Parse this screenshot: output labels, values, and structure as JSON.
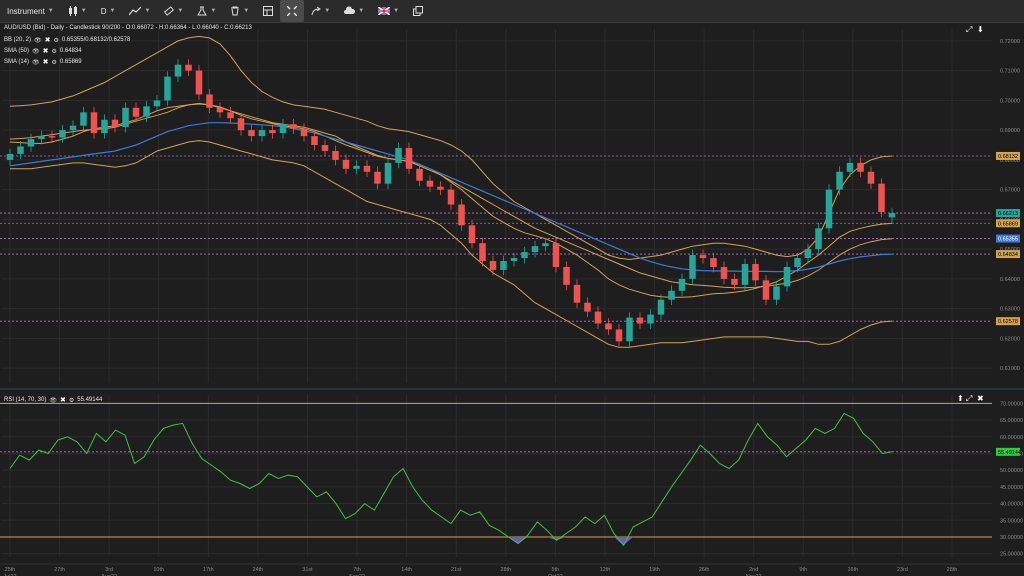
{
  "toolbar": {
    "instrument_label": "Instrument",
    "period_label": "D",
    "items": [
      {
        "name": "chart-type-button",
        "icon": "candles-icon"
      },
      {
        "name": "drawing-tools-button",
        "icon": "pen-line-icon"
      },
      {
        "name": "indicators-button",
        "icon": "ruler-icon"
      },
      {
        "name": "studies-button",
        "icon": "flask-icon"
      },
      {
        "name": "delete-button",
        "icon": "trash-icon"
      },
      {
        "name": "layout-button",
        "icon": "layout-icon"
      },
      {
        "name": "crosshair-button",
        "icon": "crosshair-icon"
      },
      {
        "name": "trade-button",
        "icon": "arrow-icon"
      },
      {
        "name": "theme-button",
        "icon": "cloud-icon"
      },
      {
        "name": "language-button",
        "icon": "flag-uk-icon"
      },
      {
        "name": "popout-button",
        "icon": "popout-icon"
      }
    ]
  },
  "legend": {
    "title": "AUD/USD (Bid) - Daily - Candlestick  90/200 - O:0.66072 - H:0.66364 - L:0.66040 - C:0.66213",
    "bb_label": "BB (20, 2)",
    "bb_values": "0.65355/0.68132/0.62578",
    "sma50_label": "SMA (50)",
    "sma50_value": "0.64834",
    "sma14_label": "SMA (14)",
    "sma14_value": "0.65869",
    "rsi_label": "RSI (14, 70, 30)",
    "rsi_value": "55.49144"
  },
  "colors": {
    "up": "#26a69a",
    "down": "#ef5350",
    "bb": "#d4a352",
    "sma50": "#3a7bd5",
    "sma14": "#d4a352",
    "rsi": "#3ec43e",
    "grid": "#2c2c2c",
    "dash": "#b96ec9",
    "flag": "#6b5ab8"
  },
  "chart_data": [
    {
      "type": "candlestick",
      "title": "AUD/USD (Bid) - Daily - Candlestick",
      "y_ticks": [
        "0.72000",
        "0.71000",
        "0.70000",
        "0.69000",
        "0.68000",
        "0.67000",
        "0.66000",
        "0.65000",
        "0.64000",
        "0.63000",
        "0.62000",
        "0.61000"
      ],
      "ylim": [
        0.605,
        0.724
      ],
      "price_tags": [
        {
          "value": 0.68132,
          "label": "0.68132",
          "bg": "#d4a352",
          "fg": "#000"
        },
        {
          "value": 0.66213,
          "label": "0.66213",
          "bg": "#26a69a",
          "fg": "#000"
        },
        {
          "value": 0.65869,
          "label": "0.65869",
          "bg": "#d4a352",
          "fg": "#000"
        },
        {
          "value": 0.65355,
          "label": "0.65355",
          "bg": "#3a7bd5",
          "fg": "#fff"
        },
        {
          "value": 0.64834,
          "label": "0.64834",
          "bg": "#d4a352",
          "fg": "#000"
        },
        {
          "value": 0.62578,
          "label": "0.62578",
          "bg": "#d4a352",
          "fg": "#000"
        }
      ],
      "dashed_lines": [
        0.68132,
        0.66213,
        0.65869,
        0.65355,
        0.64834,
        0.62578
      ],
      "x_ticks": [
        "25th",
        "27th",
        "3rd",
        "10th",
        "17th",
        "24th",
        "31st",
        "7th",
        "14th",
        "21st",
        "28th",
        "5th",
        "12th",
        "19th",
        "26th",
        "2nd",
        "9th",
        "16th",
        "23rd",
        "28th"
      ],
      "x_month_labels": [
        {
          "under": "25th",
          "text": "Jul22"
        },
        {
          "under": "3rd",
          "text": "Aug22"
        },
        {
          "under": "7th",
          "text": "Sep22"
        },
        {
          "under": "5th",
          "text": "Oct22"
        },
        {
          "under": "2nd",
          "text": "Nov22"
        }
      ],
      "close": [
        0.682,
        0.6845,
        0.687,
        0.688,
        0.6875,
        0.69,
        0.6915,
        0.696,
        0.689,
        0.6935,
        0.691,
        0.6975,
        0.6945,
        0.698,
        0.7,
        0.708,
        0.712,
        0.71,
        0.702,
        0.6975,
        0.696,
        0.694,
        0.69,
        0.688,
        0.69,
        0.689,
        0.692,
        0.6905,
        0.688,
        0.685,
        0.683,
        0.68,
        0.677,
        0.678,
        0.676,
        0.672,
        0.679,
        0.684,
        0.677,
        0.673,
        0.671,
        0.67,
        0.665,
        0.658,
        0.652,
        0.646,
        0.643,
        0.646,
        0.647,
        0.649,
        0.651,
        0.652,
        0.644,
        0.638,
        0.632,
        0.629,
        0.625,
        0.623,
        0.619,
        0.627,
        0.625,
        0.628,
        0.633,
        0.636,
        0.64,
        0.648,
        0.647,
        0.644,
        0.64,
        0.638,
        0.645,
        0.6395,
        0.633,
        0.6375,
        0.644,
        0.647,
        0.65,
        0.657,
        0.67,
        0.676,
        0.679,
        0.676,
        0.672,
        0.6625,
        0.6621
      ],
      "open": [
        0.68,
        0.682,
        0.6845,
        0.687,
        0.688,
        0.6875,
        0.69,
        0.6915,
        0.696,
        0.689,
        0.6935,
        0.691,
        0.6975,
        0.6945,
        0.698,
        0.7,
        0.708,
        0.712,
        0.71,
        0.702,
        0.6975,
        0.696,
        0.694,
        0.69,
        0.688,
        0.69,
        0.689,
        0.692,
        0.6905,
        0.688,
        0.685,
        0.683,
        0.68,
        0.677,
        0.678,
        0.676,
        0.672,
        0.679,
        0.684,
        0.677,
        0.673,
        0.671,
        0.67,
        0.665,
        0.658,
        0.652,
        0.646,
        0.643,
        0.646,
        0.647,
        0.649,
        0.651,
        0.652,
        0.644,
        0.638,
        0.632,
        0.629,
        0.625,
        0.623,
        0.619,
        0.627,
        0.625,
        0.628,
        0.633,
        0.636,
        0.64,
        0.648,
        0.647,
        0.644,
        0.64,
        0.638,
        0.645,
        0.6395,
        0.633,
        0.6375,
        0.644,
        0.647,
        0.65,
        0.657,
        0.67,
        0.676,
        0.679,
        0.676,
        0.672,
        0.6607
      ],
      "bb_mid": [
        0.687,
        0.6872,
        0.6875,
        0.688,
        0.6885,
        0.689,
        0.6895,
        0.69,
        0.6902,
        0.6905,
        0.691,
        0.692,
        0.693,
        0.694,
        0.695,
        0.696,
        0.6975,
        0.6985,
        0.699,
        0.6985,
        0.6975,
        0.6965,
        0.6955,
        0.6945,
        0.6935,
        0.6925,
        0.692,
        0.6915,
        0.691,
        0.69,
        0.689,
        0.688,
        0.686,
        0.6845,
        0.683,
        0.6815,
        0.6805,
        0.68,
        0.6795,
        0.678,
        0.6765,
        0.675,
        0.673,
        0.671,
        0.669,
        0.667,
        0.665,
        0.663,
        0.661,
        0.659,
        0.657,
        0.6555,
        0.654,
        0.6525,
        0.651,
        0.6495,
        0.648,
        0.6465,
        0.645,
        0.6435,
        0.642,
        0.641,
        0.64,
        0.639,
        0.6385,
        0.638,
        0.6378,
        0.6375,
        0.6372,
        0.637,
        0.637,
        0.6372,
        0.6375,
        0.638,
        0.6385,
        0.6395,
        0.641,
        0.643,
        0.6455,
        0.648,
        0.65,
        0.6515,
        0.6525,
        0.6532,
        0.6535
      ],
      "bb_up": [
        0.698,
        0.6982,
        0.6985,
        0.699,
        0.6995,
        0.7005,
        0.7015,
        0.703,
        0.7045,
        0.706,
        0.708,
        0.71,
        0.712,
        0.714,
        0.716,
        0.718,
        0.72,
        0.721,
        0.7215,
        0.721,
        0.719,
        0.715,
        0.71,
        0.706,
        0.703,
        0.701,
        0.6995,
        0.6985,
        0.698,
        0.6975,
        0.697,
        0.696,
        0.695,
        0.694,
        0.693,
        0.6915,
        0.6905,
        0.69,
        0.6895,
        0.6885,
        0.6875,
        0.6865,
        0.685,
        0.683,
        0.68,
        0.676,
        0.672,
        0.669,
        0.666,
        0.664,
        0.662,
        0.66,
        0.658,
        0.656,
        0.654,
        0.652,
        0.65,
        0.648,
        0.647,
        0.6465,
        0.647,
        0.6475,
        0.648,
        0.649,
        0.65,
        0.651,
        0.6515,
        0.652,
        0.652,
        0.6515,
        0.651,
        0.65,
        0.649,
        0.648,
        0.6475,
        0.648,
        0.65,
        0.654,
        0.662,
        0.67,
        0.675,
        0.678,
        0.68,
        0.681,
        0.6813
      ],
      "bb_dn": [
        0.677,
        0.677,
        0.677,
        0.6775,
        0.678,
        0.6785,
        0.679,
        0.679,
        0.6785,
        0.678,
        0.6775,
        0.678,
        0.679,
        0.681,
        0.683,
        0.684,
        0.685,
        0.686,
        0.6865,
        0.686,
        0.685,
        0.684,
        0.683,
        0.682,
        0.681,
        0.68,
        0.6795,
        0.679,
        0.678,
        0.676,
        0.674,
        0.672,
        0.67,
        0.668,
        0.666,
        0.665,
        0.664,
        0.663,
        0.662,
        0.661,
        0.66,
        0.658,
        0.655,
        0.652,
        0.648,
        0.645,
        0.642,
        0.64,
        0.638,
        0.635,
        0.632,
        0.63,
        0.628,
        0.626,
        0.624,
        0.622,
        0.62,
        0.618,
        0.617,
        0.617,
        0.6175,
        0.618,
        0.6185,
        0.6185,
        0.6185,
        0.619,
        0.6195,
        0.62,
        0.6205,
        0.6205,
        0.6205,
        0.6205,
        0.6205,
        0.62,
        0.6195,
        0.619,
        0.619,
        0.618,
        0.618,
        0.619,
        0.621,
        0.623,
        0.6245,
        0.6255,
        0.6258
      ],
      "sma50": [
        0.678,
        0.6785,
        0.679,
        0.6795,
        0.68,
        0.6805,
        0.681,
        0.6815,
        0.682,
        0.6825,
        0.683,
        0.684,
        0.685,
        0.6865,
        0.688,
        0.6895,
        0.6905,
        0.6915,
        0.692,
        0.6925,
        0.6925,
        0.6924,
        0.6922,
        0.692,
        0.6918,
        0.6915,
        0.6912,
        0.6905,
        0.6898,
        0.689,
        0.688,
        0.687,
        0.686,
        0.685,
        0.684,
        0.683,
        0.682,
        0.681,
        0.68,
        0.6785,
        0.677,
        0.6755,
        0.674,
        0.6725,
        0.671,
        0.6695,
        0.668,
        0.6665,
        0.665,
        0.6635,
        0.662,
        0.6605,
        0.659,
        0.6575,
        0.656,
        0.6545,
        0.653,
        0.6515,
        0.65,
        0.6485,
        0.647,
        0.6458,
        0.6448,
        0.644,
        0.6434,
        0.643,
        0.6428,
        0.6427,
        0.6426,
        0.6426,
        0.6425,
        0.6425,
        0.6425,
        0.6424,
        0.6425,
        0.6428,
        0.6433,
        0.644,
        0.645,
        0.646,
        0.6468,
        0.6474,
        0.6478,
        0.6482,
        0.6483
      ],
      "sma14": [
        0.686,
        0.6858,
        0.6856,
        0.6855,
        0.686,
        0.687,
        0.688,
        0.6895,
        0.6905,
        0.691,
        0.6915,
        0.6925,
        0.6935,
        0.695,
        0.6965,
        0.6975,
        0.698,
        0.6985,
        0.6988,
        0.6985,
        0.6978,
        0.6965,
        0.695,
        0.6938,
        0.693,
        0.6922,
        0.6915,
        0.691,
        0.6905,
        0.6895,
        0.688,
        0.6865,
        0.685,
        0.6838,
        0.6825,
        0.6812,
        0.6805,
        0.68,
        0.6795,
        0.6785,
        0.677,
        0.675,
        0.6725,
        0.67,
        0.667,
        0.664,
        0.661,
        0.659,
        0.657,
        0.6555,
        0.6545,
        0.6535,
        0.652,
        0.65,
        0.648,
        0.6455,
        0.643,
        0.64,
        0.638,
        0.6365,
        0.6355,
        0.6345,
        0.634,
        0.6338,
        0.6338,
        0.634,
        0.6345,
        0.635,
        0.6352,
        0.6355,
        0.636,
        0.6368,
        0.6378,
        0.639,
        0.641,
        0.643,
        0.6455,
        0.648,
        0.651,
        0.654,
        0.656,
        0.657,
        0.6578,
        0.6584,
        0.6587
      ]
    },
    {
      "type": "line",
      "title": "RSI (14, 70, 30)",
      "y_ticks": [
        "70.00000",
        "65.00000",
        "60.00000",
        "55.00000",
        "50.00000",
        "45.00000",
        "40.00000",
        "35.00000",
        "30.00000",
        "25.00000"
      ],
      "ylim": [
        24.0,
        72.5
      ],
      "levels": [
        70,
        30
      ],
      "last_value": "55.49144",
      "series": [
        {
          "values": [
            50.5,
            54.5,
            53.0,
            56.0,
            55.0,
            59.0,
            60.0,
            58.5,
            55.0,
            61.0,
            58.5,
            62.0,
            60.5,
            52.0,
            54.0,
            59.0,
            62.5,
            63.5,
            64.0,
            58.0,
            53.5,
            51.5,
            49.5,
            47.0,
            46.0,
            44.5,
            46.0,
            49.0,
            47.5,
            48.5,
            48.0,
            45.0,
            42.0,
            43.5,
            40.0,
            35.5,
            37.0,
            40.0,
            38.0,
            43.0,
            48.0,
            50.5,
            45.0,
            41.0,
            38.0,
            36.0,
            34.0,
            38.0,
            36.5,
            37.5,
            33.5,
            32.0,
            30.0,
            28.0,
            30.5,
            34.5,
            32.0,
            29.0,
            31.0,
            33.0,
            36.0,
            34.0,
            36.5,
            31.0,
            27.5,
            33.0,
            34.5,
            36.0,
            40.5,
            45.0,
            49.0,
            53.0,
            57.5,
            55.0,
            52.0,
            50.5,
            53.0,
            59.0,
            64.0,
            60.0,
            57.5,
            54.0,
            56.5,
            59.0,
            62.5,
            61.0,
            62.5,
            67.0,
            65.5,
            61.0,
            58.5,
            55.0,
            55.5
          ]
        }
      ]
    }
  ]
}
